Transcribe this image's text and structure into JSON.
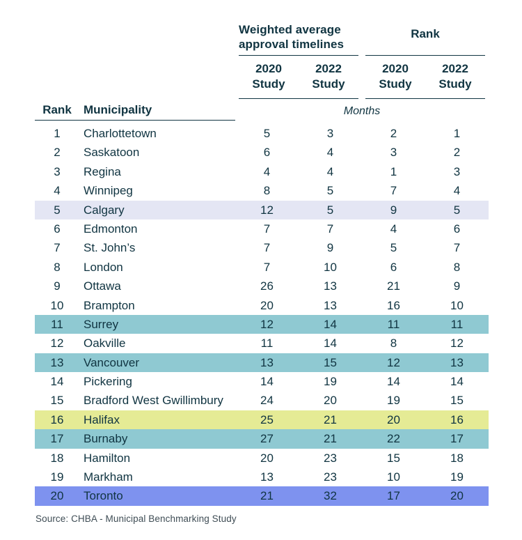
{
  "table": {
    "group_headers": {
      "timelines": "Weighted average approval timelines",
      "rank": "Rank"
    },
    "study_columns": [
      {
        "year": "2020",
        "study": "Study"
      },
      {
        "year": "2022",
        "study": "Study"
      },
      {
        "year": "2020",
        "study": "Study"
      },
      {
        "year": "2022",
        "study": "Study"
      }
    ],
    "left_headers": {
      "rank": "Rank",
      "municipality": "Municipality"
    },
    "unit_label": "Months"
  },
  "chart_data": {
    "type": "table",
    "column_groups": [
      "Weighted average approval timelines",
      "Rank"
    ],
    "columns": [
      "Rank",
      "Municipality",
      "2020 Study (months)",
      "2022 Study (months)",
      "2020 Study (rank)",
      "2022 Study (rank)"
    ],
    "unit": "Months",
    "rows": [
      {
        "rank": "1",
        "municipality": "Charlottetown",
        "timeline_2020": "5",
        "timeline_2022": "3",
        "rank_2020": "2",
        "rank_2022": "1",
        "highlight": "none"
      },
      {
        "rank": "2",
        "municipality": "Saskatoon",
        "timeline_2020": "6",
        "timeline_2022": "4",
        "rank_2020": "3",
        "rank_2022": "2",
        "highlight": "none"
      },
      {
        "rank": "3",
        "municipality": "Regina",
        "timeline_2020": "4",
        "timeline_2022": "4",
        "rank_2020": "1",
        "rank_2022": "3",
        "highlight": "none"
      },
      {
        "rank": "4",
        "municipality": "Winnipeg",
        "timeline_2020": "8",
        "timeline_2022": "5",
        "rank_2020": "7",
        "rank_2022": "4",
        "highlight": "none"
      },
      {
        "rank": "5",
        "municipality": "Calgary",
        "timeline_2020": "12",
        "timeline_2022": "5",
        "rank_2020": "9",
        "rank_2022": "5",
        "highlight": "lavender"
      },
      {
        "rank": "6",
        "municipality": "Edmonton",
        "timeline_2020": "7",
        "timeline_2022": "7",
        "rank_2020": "4",
        "rank_2022": "6",
        "highlight": "none"
      },
      {
        "rank": "7",
        "municipality": "St. John’s",
        "timeline_2020": "7",
        "timeline_2022": "9",
        "rank_2020": "5",
        "rank_2022": "7",
        "highlight": "none"
      },
      {
        "rank": "8",
        "municipality": "London",
        "timeline_2020": "7",
        "timeline_2022": "10",
        "rank_2020": "6",
        "rank_2022": "8",
        "highlight": "none"
      },
      {
        "rank": "9",
        "municipality": "Ottawa",
        "timeline_2020": "26",
        "timeline_2022": "13",
        "rank_2020": "21",
        "rank_2022": "9",
        "highlight": "none"
      },
      {
        "rank": "10",
        "municipality": "Brampton",
        "timeline_2020": "20",
        "timeline_2022": "13",
        "rank_2020": "16",
        "rank_2022": "10",
        "highlight": "none"
      },
      {
        "rank": "11",
        "municipality": "Surrey",
        "timeline_2020": "12",
        "timeline_2022": "14",
        "rank_2020": "11",
        "rank_2022": "11",
        "highlight": "teal"
      },
      {
        "rank": "12",
        "municipality": "Oakville",
        "timeline_2020": "11",
        "timeline_2022": "14",
        "rank_2020": "8",
        "rank_2022": "12",
        "highlight": "none"
      },
      {
        "rank": "13",
        "municipality": "Vancouver",
        "timeline_2020": "13",
        "timeline_2022": "15",
        "rank_2020": "12",
        "rank_2022": "13",
        "highlight": "teal"
      },
      {
        "rank": "14",
        "municipality": "Pickering",
        "timeline_2020": "14",
        "timeline_2022": "19",
        "rank_2020": "14",
        "rank_2022": "14",
        "highlight": "none"
      },
      {
        "rank": "15",
        "municipality": "Bradford West Gwillimbury",
        "timeline_2020": "24",
        "timeline_2022": "20",
        "rank_2020": "19",
        "rank_2022": "15",
        "highlight": "none"
      },
      {
        "rank": "16",
        "municipality": "Halifax",
        "timeline_2020": "25",
        "timeline_2022": "21",
        "rank_2020": "20",
        "rank_2022": "16",
        "highlight": "yellow"
      },
      {
        "rank": "17",
        "municipality": "Burnaby",
        "timeline_2020": "27",
        "timeline_2022": "21",
        "rank_2020": "22",
        "rank_2022": "17",
        "highlight": "teal"
      },
      {
        "rank": "18",
        "municipality": "Hamilton",
        "timeline_2020": "20",
        "timeline_2022": "23",
        "rank_2020": "15",
        "rank_2022": "18",
        "highlight": "none"
      },
      {
        "rank": "19",
        "municipality": "Markham",
        "timeline_2020": "13",
        "timeline_2022": "23",
        "rank_2020": "10",
        "rank_2022": "19",
        "highlight": "none"
      },
      {
        "rank": "20",
        "municipality": "Toronto",
        "timeline_2020": "21",
        "timeline_2022": "32",
        "rank_2020": "17",
        "rank_2022": "20",
        "highlight": "blue"
      }
    ]
  },
  "footer": {
    "source": "Source: CHBA - Municipal Benchmarking Study"
  },
  "colors": {
    "text": "#103441",
    "rule": "#103441",
    "source_text": "#3f4d55",
    "highlights": {
      "none": "transparent",
      "lavender": "#e4e6f4",
      "teal": "#8fc9d2",
      "yellow": "#e5eb95",
      "blue": "#7e92ef"
    }
  }
}
